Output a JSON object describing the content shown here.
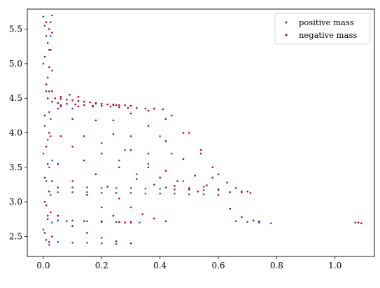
{
  "chart_data": {
    "type": "scatter",
    "title": "",
    "xlabel": "",
    "ylabel": "",
    "xlim": [
      -0.055,
      1.135
    ],
    "ylim": [
      2.21,
      5.79
    ],
    "xticks": [
      0.0,
      0.2,
      0.4,
      0.6,
      0.8,
      1.0
    ],
    "xtick_labels": [
      "0.0",
      "0.2",
      "0.4",
      "0.6",
      "0.8",
      "1.0"
    ],
    "yticks": [
      2.5,
      3.0,
      3.5,
      4.0,
      4.5,
      5.0,
      5.5
    ],
    "ytick_labels": [
      "2.5",
      "3.0",
      "3.5",
      "4.0",
      "4.5",
      "5.0",
      "5.5"
    ],
    "grid": false,
    "legend_position": "top-right",
    "series": [
      {
        "name": "positive mass",
        "color": "#3b4cc0",
        "points": [
          [
            0.0,
            5.68
          ],
          [
            0.005,
            5.55
          ],
          [
            0.01,
            5.4
          ],
          [
            0.02,
            5.2
          ],
          [
            0.0,
            5.0
          ],
          [
            0.015,
            4.8
          ],
          [
            0.01,
            4.6
          ],
          [
            0.02,
            4.3
          ],
          [
            0.005,
            4.1
          ],
          [
            0.015,
            3.9
          ],
          [
            0.0,
            3.7
          ],
          [
            0.02,
            3.5
          ],
          [
            0.01,
            3.3
          ],
          [
            0.005,
            3.0
          ],
          [
            0.015,
            2.8
          ],
          [
            0.0,
            2.6
          ],
          [
            0.01,
            2.45
          ],
          [
            0.02,
            2.38
          ],
          [
            0.025,
            5.6
          ],
          [
            0.03,
            5.7
          ],
          [
            0.025,
            5.4
          ],
          [
            0.03,
            4.9
          ],
          [
            0.025,
            4.2
          ],
          [
            0.03,
            3.6
          ],
          [
            0.025,
            3.1
          ],
          [
            0.03,
            2.7
          ],
          [
            0.05,
            3.21
          ],
          [
            0.1,
            3.21
          ],
          [
            0.15,
            3.21
          ],
          [
            0.2,
            3.2
          ],
          [
            0.25,
            3.2
          ],
          [
            0.3,
            3.2
          ],
          [
            0.35,
            3.19
          ],
          [
            0.4,
            3.19
          ],
          [
            0.45,
            3.18
          ],
          [
            0.5,
            3.18
          ],
          [
            0.55,
            3.17
          ],
          [
            0.6,
            3.17
          ],
          [
            0.05,
            3.14
          ],
          [
            0.1,
            3.14
          ],
          [
            0.15,
            3.14
          ],
          [
            0.2,
            3.13
          ],
          [
            0.25,
            3.13
          ],
          [
            0.3,
            3.13
          ],
          [
            0.35,
            3.12
          ],
          [
            0.4,
            3.12
          ],
          [
            0.45,
            3.12
          ],
          [
            0.5,
            3.11
          ],
          [
            0.55,
            3.11
          ],
          [
            0.05,
            2.73
          ],
          [
            0.1,
            2.73
          ],
          [
            0.15,
            2.72
          ],
          [
            0.2,
            2.72
          ],
          [
            0.25,
            2.71
          ],
          [
            0.3,
            2.7
          ],
          [
            0.33,
            2.7
          ],
          [
            0.05,
            2.42
          ],
          [
            0.1,
            2.41
          ],
          [
            0.15,
            2.41
          ],
          [
            0.2,
            2.4
          ],
          [
            0.25,
            2.39
          ],
          [
            0.66,
            2.72
          ],
          [
            0.7,
            2.71
          ],
          [
            0.74,
            2.7
          ],
          [
            0.78,
            2.69
          ],
          [
            0.06,
            4.38
          ],
          [
            0.1,
            4.35
          ],
          [
            0.14,
            4.45
          ],
          [
            0.18,
            4.42
          ],
          [
            0.24,
            4.4
          ],
          [
            0.2,
            3.85
          ],
          [
            0.26,
            3.6
          ],
          [
            0.32,
            3.4
          ],
          [
            0.28,
            3.75
          ],
          [
            0.36,
            3.55
          ],
          [
            0.44,
            3.7
          ],
          [
            0.4,
            3.95
          ],
          [
            0.48,
            3.3
          ],
          [
            0.55,
            3.22
          ]
        ]
      },
      {
        "name": "negative mass",
        "color": "#b40426",
        "points": [
          [
            0.01,
            5.6
          ],
          [
            0.02,
            5.5
          ],
          [
            0.015,
            5.3
          ],
          [
            0.005,
            5.1
          ],
          [
            0.02,
            4.95
          ],
          [
            0.01,
            4.7
          ],
          [
            0.015,
            4.5
          ],
          [
            0.005,
            4.25
          ],
          [
            0.02,
            4.0
          ],
          [
            0.01,
            3.8
          ],
          [
            0.015,
            3.55
          ],
          [
            0.005,
            3.35
          ],
          [
            0.02,
            3.15
          ],
          [
            0.01,
            2.95
          ],
          [
            0.015,
            2.75
          ],
          [
            0.005,
            2.55
          ],
          [
            0.02,
            2.42
          ],
          [
            0.03,
            5.45
          ],
          [
            0.025,
            5.2
          ],
          [
            0.03,
            4.6
          ],
          [
            0.025,
            3.95
          ],
          [
            0.03,
            3.3
          ],
          [
            0.025,
            2.85
          ],
          [
            0.03,
            2.5
          ],
          [
            0.04,
            4.5
          ],
          [
            0.06,
            4.49
          ],
          [
            0.08,
            4.48
          ],
          [
            0.1,
            4.47
          ],
          [
            0.12,
            4.46
          ],
          [
            0.14,
            4.45
          ],
          [
            0.16,
            4.44
          ],
          [
            0.18,
            4.43
          ],
          [
            0.2,
            4.42
          ],
          [
            0.22,
            4.41
          ],
          [
            0.24,
            4.41
          ],
          [
            0.26,
            4.4
          ],
          [
            0.28,
            4.4
          ],
          [
            0.3,
            4.39
          ],
          [
            0.05,
            4.43
          ],
          [
            0.08,
            4.42
          ],
          [
            0.11,
            4.41
          ],
          [
            0.14,
            4.4
          ],
          [
            0.17,
            4.39
          ],
          [
            0.2,
            4.39
          ],
          [
            0.23,
            4.38
          ],
          [
            0.26,
            4.37
          ],
          [
            0.29,
            4.36
          ],
          [
            0.32,
            4.36
          ],
          [
            0.35,
            4.35
          ],
          [
            0.38,
            4.35
          ],
          [
            0.41,
            4.34
          ],
          [
            0.3,
            4.39
          ],
          [
            0.36,
            4.32
          ],
          [
            0.42,
            4.2
          ],
          [
            0.48,
            4.0
          ],
          [
            0.54,
            3.75
          ],
          [
            0.58,
            3.5
          ],
          [
            0.6,
            3.4
          ],
          [
            0.63,
            3.28
          ],
          [
            0.66,
            3.2
          ],
          [
            0.7,
            3.15
          ],
          [
            0.25,
            4.4
          ],
          [
            0.3,
            4.28
          ],
          [
            0.36,
            4.1
          ],
          [
            0.42,
            3.88
          ],
          [
            0.48,
            3.62
          ],
          [
            0.52,
            3.38
          ],
          [
            0.56,
            3.24
          ],
          [
            0.6,
            3.18
          ],
          [
            0.68,
            3.15
          ],
          [
            0.17,
            4.38
          ],
          [
            0.24,
            4.18
          ],
          [
            0.3,
            3.95
          ],
          [
            0.36,
            3.7
          ],
          [
            0.42,
            3.45
          ],
          [
            0.46,
            3.3
          ],
          [
            0.5,
            3.2
          ],
          [
            0.53,
            3.15
          ],
          [
            0.12,
            4.38
          ],
          [
            0.18,
            4.18
          ],
          [
            0.24,
            3.98
          ],
          [
            0.3,
            3.75
          ],
          [
            0.36,
            3.5
          ],
          [
            0.4,
            3.35
          ],
          [
            0.45,
            3.23
          ],
          [
            0.5,
            3.18
          ],
          [
            0.06,
            4.4
          ],
          [
            0.1,
            4.2
          ],
          [
            0.14,
            3.95
          ],
          [
            0.2,
            3.7
          ],
          [
            0.26,
            3.5
          ],
          [
            0.32,
            3.33
          ],
          [
            0.38,
            3.25
          ],
          [
            0.42,
            3.21
          ],
          [
            0.06,
            3.95
          ],
          [
            0.1,
            3.8
          ],
          [
            0.14,
            3.6
          ],
          [
            0.18,
            3.4
          ],
          [
            0.22,
            3.22
          ],
          [
            0.26,
            3.05
          ],
          [
            0.3,
            2.92
          ],
          [
            0.34,
            2.82
          ],
          [
            0.38,
            2.76
          ],
          [
            0.42,
            2.72
          ],
          [
            0.38,
            4.35
          ],
          [
            0.44,
            4.25
          ],
          [
            0.5,
            4.0
          ],
          [
            0.54,
            3.7
          ],
          [
            0.58,
            3.35
          ],
          [
            0.6,
            3.1
          ],
          [
            0.64,
            2.9
          ],
          [
            0.68,
            2.78
          ],
          [
            0.72,
            2.73
          ],
          [
            0.05,
            3.55
          ],
          [
            0.1,
            3.3
          ],
          [
            0.15,
            3.1
          ],
          [
            0.2,
            2.92
          ],
          [
            0.24,
            2.8
          ],
          [
            0.28,
            2.7
          ],
          [
            0.05,
            2.8
          ],
          [
            0.1,
            2.65
          ],
          [
            0.15,
            2.55
          ],
          [
            0.2,
            2.48
          ],
          [
            0.25,
            2.43
          ],
          [
            0.3,
            2.4
          ],
          [
            0.08,
            2.72
          ],
          [
            0.14,
            2.72
          ],
          [
            0.2,
            2.71
          ],
          [
            0.26,
            2.71
          ],
          [
            0.3,
            2.71
          ],
          [
            0.74,
            2.72
          ],
          [
            1.07,
            2.7
          ],
          [
            1.08,
            2.7
          ],
          [
            1.09,
            2.69
          ],
          [
            0.64,
            3.14
          ],
          [
            0.68,
            3.14
          ],
          [
            0.71,
            3.13
          ],
          [
            0.02,
            4.6
          ],
          [
            0.06,
            4.52
          ],
          [
            0.09,
            4.55
          ],
          [
            0.12,
            4.52
          ],
          [
            0.05,
            4.35
          ],
          [
            0.03,
            4.45
          ]
        ]
      }
    ]
  }
}
